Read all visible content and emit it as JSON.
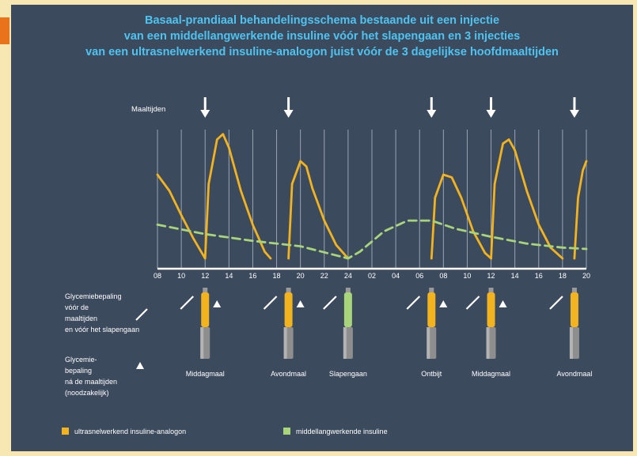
{
  "title_lines": [
    "Basaal-prandiaal behandelingsschema bestaande uit een injectie",
    "van een middellangwerkende insuline vóór het slapengaan en 3 injecties",
    "van een ultrasnelwerkend insuline-analogon juist vóór de 3 dagelijkse hoofdmaaltijden"
  ],
  "meals_label": "Maaltijden",
  "hour_ticks": [
    "08",
    "10",
    "12",
    "14",
    "16",
    "18",
    "20",
    "22",
    "24",
    "02",
    "04",
    "06",
    "08",
    "10",
    "12",
    "14",
    "16",
    "18",
    "20"
  ],
  "legend_pre_meal": [
    "Glycemiebepaling",
    "vóór de",
    "maaltijden",
    "en vóór het slapengaan"
  ],
  "legend_post_meal": [
    "Glycemie-",
    "bepaling",
    "ná de maaltijden",
    "(noodzakelijk)"
  ],
  "events": [
    {
      "label": "Middagmaal",
      "hour": 12,
      "insulin": "ultra",
      "post_meal": true
    },
    {
      "label": "Avondmaal",
      "hour": 19,
      "insulin": "ultra",
      "post_meal": true
    },
    {
      "label": "Slapengaan",
      "hour": 24,
      "insulin": "middle",
      "post_meal": false
    },
    {
      "label": "Ontbijt",
      "hour": 31,
      "insulin": "ultra",
      "post_meal": true
    },
    {
      "label": "Middagmaal",
      "hour": 36,
      "insulin": "ultra",
      "post_meal": true
    },
    {
      "label": "Avondmaal",
      "hour": 43,
      "insulin": "ultra",
      "post_meal": false
    }
  ],
  "meal_arrow_hours": [
    12,
    19,
    31,
    36,
    43
  ],
  "legend": [
    {
      "label": "ultrasnelwerkend insuline-analogon",
      "color": "#f2b320"
    },
    {
      "label": "middellangwerkende insuline",
      "color": "#a8d47a"
    }
  ],
  "colors": {
    "ultra": "#f2b320",
    "middle": "#a8d47a",
    "cyan": "#4fc3f0"
  },
  "chart_data": {
    "type": "line",
    "x_axis": "hour of day, 08 to 20 the next day (linear hours 8 to 44)",
    "xlim": [
      8,
      44
    ],
    "series": [
      {
        "kind": "ultra",
        "points": [
          [
            8,
            0.62
          ],
          [
            9,
            0.5
          ],
          [
            10,
            0.32
          ],
          [
            11,
            0.15
          ],
          [
            12,
            0
          ],
          [
            12.3,
            0.55
          ],
          [
            13,
            0.88
          ],
          [
            13.5,
            0.92
          ],
          [
            14,
            0.82
          ],
          [
            15,
            0.5
          ],
          [
            16,
            0.25
          ],
          [
            17,
            0.05
          ],
          [
            17.5,
            0
          ]
        ]
      },
      {
        "kind": "ultra",
        "points": [
          [
            19,
            0
          ],
          [
            19.3,
            0.55
          ],
          [
            20,
            0.72
          ],
          [
            20.5,
            0.68
          ],
          [
            21,
            0.52
          ],
          [
            22,
            0.28
          ],
          [
            23,
            0.1
          ],
          [
            24,
            0
          ]
        ]
      },
      {
        "kind": "ultra",
        "points": [
          [
            31,
            0
          ],
          [
            31.3,
            0.45
          ],
          [
            32,
            0.62
          ],
          [
            32.7,
            0.6
          ],
          [
            33.5,
            0.45
          ],
          [
            34.5,
            0.2
          ],
          [
            35.5,
            0.04
          ],
          [
            36,
            0
          ]
        ]
      },
      {
        "kind": "ultra",
        "points": [
          [
            36,
            0
          ],
          [
            36.3,
            0.55
          ],
          [
            37,
            0.85
          ],
          [
            37.5,
            0.88
          ],
          [
            38,
            0.8
          ],
          [
            39,
            0.5
          ],
          [
            40,
            0.25
          ],
          [
            41,
            0.08
          ],
          [
            42,
            0
          ]
        ]
      },
      {
        "kind": "ultra",
        "points": [
          [
            43,
            0
          ],
          [
            43.3,
            0.45
          ],
          [
            43.7,
            0.65
          ],
          [
            44,
            0.72
          ]
        ]
      },
      {
        "kind": "middle",
        "dashed": true,
        "points": [
          [
            8,
            0.25
          ],
          [
            12,
            0.18
          ],
          [
            16,
            0.13
          ],
          [
            20,
            0.09
          ],
          [
            24,
            0
          ],
          [
            25,
            0.05
          ],
          [
            27,
            0.2
          ],
          [
            29,
            0.28
          ],
          [
            31,
            0.28
          ],
          [
            33,
            0.22
          ],
          [
            36,
            0.16
          ],
          [
            39,
            0.11
          ],
          [
            42,
            0.08
          ],
          [
            44,
            0.07
          ]
        ]
      }
    ]
  }
}
